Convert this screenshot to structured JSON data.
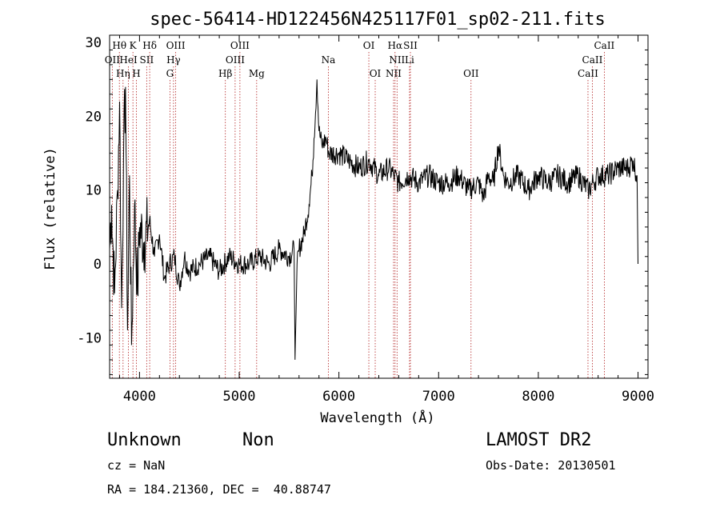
{
  "chart_data": {
    "type": "line",
    "title": "spec-56414-HD122456N425117F01_sp02-211.fits",
    "xlabel": "Wavelength (Å)",
    "ylabel": "Flux (relative)",
    "xlim": [
      3700,
      9100
    ],
    "ylim": [
      -15.5,
      31
    ],
    "xticks": [
      4000,
      5000,
      6000,
      7000,
      8000,
      9000
    ],
    "yticks": [
      -10,
      0,
      10,
      20,
      30
    ],
    "grid": false,
    "series": [
      {
        "x": [
          3700,
          3720,
          3750,
          3780,
          3800,
          3820,
          3840,
          3860,
          3880,
          3900,
          3920,
          3950,
          3980,
          4000,
          4050,
          4100,
          4150,
          4200,
          4250,
          4300,
          4350,
          4400,
          4450,
          4500,
          4600,
          4700,
          4800,
          4900,
          5000,
          5100,
          5200,
          5300,
          5400,
          5500,
          5550,
          5560,
          5580,
          5600,
          5650,
          5700,
          5730,
          5750,
          5780,
          5800,
          5830,
          5870,
          5900,
          6000,
          6100,
          6200,
          6300,
          6400,
          6500,
          6550,
          6600,
          6700,
          6800,
          6900,
          7000,
          7100,
          7200,
          7300,
          7400,
          7450,
          7500,
          7550,
          7600,
          7650,
          7700,
          7800,
          7900,
          8000,
          8100,
          8200,
          8300,
          8400,
          8500,
          8550,
          8600,
          8700,
          8800,
          8900,
          8950,
          8990,
          9000
        ],
        "y": [
          2,
          8,
          -4,
          10,
          22,
          -6,
          14,
          24,
          -9,
          12,
          -11,
          8,
          -4,
          5,
          3,
          6,
          1,
          4,
          -2,
          0,
          1,
          -3,
          1,
          -1,
          0,
          1,
          -1,
          1,
          0,
          0,
          1,
          0,
          2,
          1,
          2,
          -13,
          0,
          2,
          4,
          8,
          12,
          17,
          25,
          18,
          16,
          17,
          15,
          15,
          14,
          13,
          14,
          12,
          13,
          12,
          11,
          12,
          11,
          12,
          11,
          11,
          12,
          10,
          11,
          9,
          12,
          11,
          16,
          12,
          11,
          12,
          10,
          12,
          11,
          12,
          11,
          12,
          10,
          11,
          12,
          12,
          13,
          13,
          14,
          12,
          0
        ]
      }
    ],
    "lines": [
      {
        "name": "OII",
        "x": 3727,
        "row": 1
      },
      {
        "name": "Hθ",
        "x": 3798,
        "row": 0
      },
      {
        "name": "Hη",
        "x": 3835,
        "row": 2
      },
      {
        "name": "HeI",
        "x": 3889,
        "row": 1
      },
      {
        "name": "K",
        "x": 3934,
        "row": 0
      },
      {
        "name": "H",
        "x": 3969,
        "row": 2
      },
      {
        "name": "SII",
        "x": 4072,
        "row": 1
      },
      {
        "name": "Hδ",
        "x": 4102,
        "row": 0
      },
      {
        "name": "G",
        "x": 4305,
        "row": 2
      },
      {
        "name": "Hγ",
        "x": 4341,
        "row": 1
      },
      {
        "name": "OIII",
        "x": 4363,
        "row": 0
      },
      {
        "name": "Hβ",
        "x": 4861,
        "row": 2
      },
      {
        "name": "OIII",
        "x": 4959,
        "row": 1
      },
      {
        "name": "OIII",
        "x": 5007,
        "row": 0
      },
      {
        "name": "Mg",
        "x": 5175,
        "row": 2
      },
      {
        "name": "Na",
        "x": 5894,
        "row": 1
      },
      {
        "name": "OI",
        "x": 6300,
        "row": 0
      },
      {
        "name": "OI",
        "x": 6364,
        "row": 2
      },
      {
        "name": "NII",
        "x": 6548,
        "row": 2
      },
      {
        "name": "Hα",
        "x": 6563,
        "row": 0
      },
      {
        "name": "NII",
        "x": 6583,
        "row": 1
      },
      {
        "name": "SII",
        "x": 6717,
        "row": 0
      },
      {
        "name": "Li",
        "x": 6708,
        "row": 1
      },
      {
        "name": "OII",
        "x": 7325,
        "row": 2
      },
      {
        "name": "CaII",
        "x": 8498,
        "row": 2
      },
      {
        "name": "CaII",
        "x": 8542,
        "row": 1
      },
      {
        "name": "CaII",
        "x": 8662,
        "row": 0
      }
    ]
  },
  "info": {
    "object_class": "Unknown",
    "subclass": "Non",
    "survey": "LAMOST DR2",
    "cz": "cz = NaN",
    "obs_date": "Obs-Date: 20130501",
    "coords": "RA = 184.21360, DEC =  40.88747"
  }
}
